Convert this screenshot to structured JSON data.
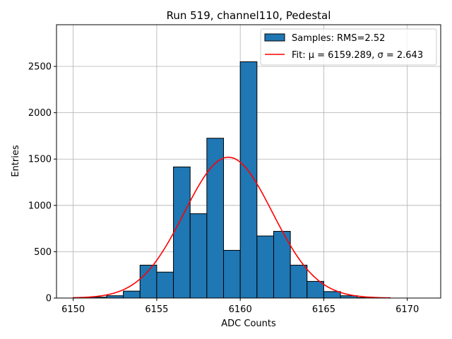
{
  "chart_data": {
    "type": "bar",
    "title": "Run 519, channel110, Pedestal",
    "xlabel": "ADC Counts",
    "ylabel": "Entries",
    "xlim": [
      6149,
      6172
    ],
    "ylim": [
      0,
      2950
    ],
    "xticks": [
      6150,
      6155,
      6160,
      6165,
      6170
    ],
    "yticks": [
      0,
      500,
      1000,
      1500,
      2000,
      2500
    ],
    "grid": true,
    "legend_position": "top-right",
    "histogram": {
      "name": "Samples: RMS=2.52",
      "bin_width": 1,
      "bin_edges_start": [
        6150,
        6151,
        6152,
        6153,
        6154,
        6155,
        6156,
        6157,
        6158,
        6159,
        6160,
        6161,
        6162,
        6163,
        6164,
        6165,
        6166,
        6167,
        6168,
        6169,
        6170
      ],
      "counts": [
        5,
        10,
        25,
        75,
        355,
        280,
        1415,
        910,
        1725,
        515,
        2550,
        670,
        720,
        355,
        180,
        70,
        25,
        5,
        0,
        0,
        0
      ],
      "color": "#1f77b4"
    },
    "fit": {
      "name": "Fit: μ = 6159.289, σ = 2.643",
      "type": "gaussian",
      "mu": 6159.289,
      "sigma": 2.643,
      "amplitude": 1520,
      "x_range": [
        6150,
        6169
      ],
      "color": "#ff0000"
    }
  }
}
